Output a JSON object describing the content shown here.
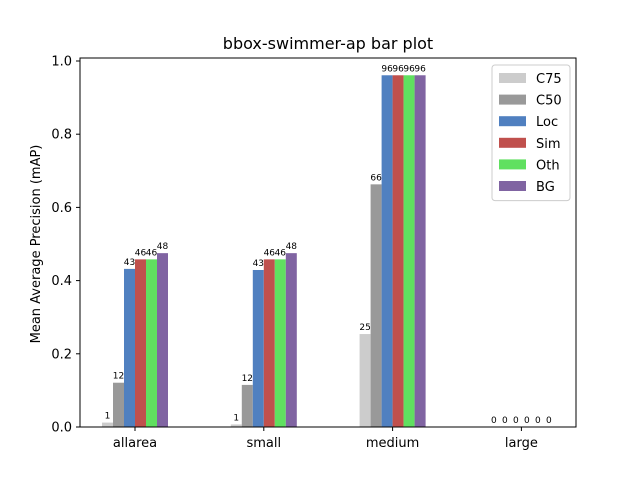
{
  "chart_data": {
    "type": "bar",
    "title": "bbox-swimmer-ap bar plot",
    "xlabel": "",
    "ylabel": "Mean Average Precision (mAP)",
    "ylim": [
      0,
      1.0
    ],
    "yticks": [
      "0.0",
      "0.2",
      "0.4",
      "0.6",
      "0.8",
      "1.0"
    ],
    "grid": false,
    "legend_position": "top-right",
    "categories": [
      "allarea",
      "small",
      "medium",
      "large"
    ],
    "series": [
      {
        "name": "C75",
        "color": "#cccccc",
        "values": [
          0.012,
          0.007,
          0.254,
          0.0
        ],
        "labels": [
          "1",
          "1",
          "25",
          "0"
        ]
      },
      {
        "name": "C50",
        "color": "#999999",
        "values": [
          0.121,
          0.115,
          0.663,
          0.0
        ],
        "labels": [
          "12",
          "12",
          "66",
          "0"
        ]
      },
      {
        "name": "Loc",
        "color": "#5080c0",
        "values": [
          0.432,
          0.429,
          0.961,
          0.0
        ],
        "labels": [
          "43",
          "43",
          "96",
          "0"
        ]
      },
      {
        "name": "Sim",
        "color": "#c0504d",
        "values": [
          0.458,
          0.458,
          0.961,
          0.0
        ],
        "labels": [
          "46",
          "46",
          "96",
          "0"
        ]
      },
      {
        "name": "Oth",
        "color": "#60e060",
        "values": [
          0.458,
          0.458,
          0.961,
          0.0
        ],
        "labels": [
          "46",
          "46",
          "96",
          "0"
        ]
      },
      {
        "name": "BG",
        "color": "#8064a2",
        "values": [
          0.475,
          0.475,
          0.961,
          0.0
        ],
        "labels": [
          "48",
          "48",
          "96",
          "0"
        ]
      }
    ]
  }
}
